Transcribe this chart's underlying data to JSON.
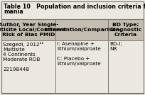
{
  "title_line1": "Table 10",
  "title_line2": "Population and inclusion criteria for asenapine pl",
  "title_line3": "mania",
  "headers": [
    "Author, Year Single-\nMultisite Local/Continent\nRisk of Bias PMID",
    "Intervention/Comparison",
    "BD Type;\nDiagnostic\nCriteria"
  ],
  "row_col0": "Szegedi, 2012²²\nMultisite\n4 Continents\nModerate ROB\n\n22198448",
  "row_col1": "I: Asenapine +\nlithium/valproate\n\nC: Placebo +\nlithium/valproate",
  "row_col2": "BD-I;\nNR",
  "bg_color": "#ede8df",
  "header_bg": "#c5bdb0",
  "border_color": "#7a7a7a",
  "title_fontsize": 5.8,
  "header_fontsize": 5.4,
  "cell_fontsize": 5.2
}
